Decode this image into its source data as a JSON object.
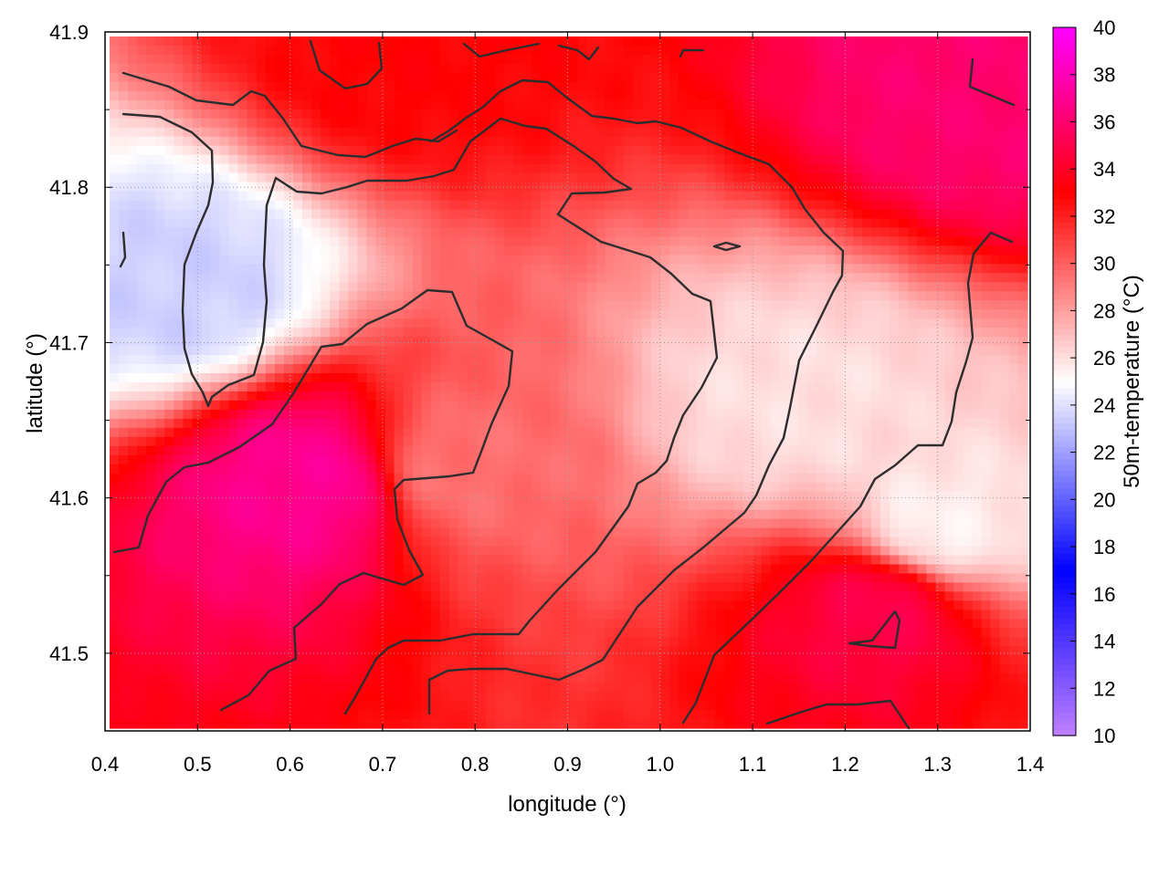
{
  "chart_data": {
    "type": "heatmap",
    "title": "",
    "xlabel": "longitude (°)",
    "ylabel": "latitude (°)",
    "colorbar_label": "50m-temperature (°C)",
    "xlim": [
      0.4,
      1.4
    ],
    "ylim": [
      41.45,
      41.9
    ],
    "x_ticks": [
      "0.4",
      "0.5",
      "0.6",
      "0.7",
      "0.8",
      "0.9",
      "1.0",
      "1.1",
      "1.2",
      "1.3",
      "1.4"
    ],
    "y_ticks": [
      "41.5",
      "41.6",
      "41.7",
      "41.8",
      "41.9"
    ],
    "colorbar_ticks": [
      "10",
      "12",
      "14",
      "16",
      "18",
      "20",
      "22",
      "24",
      "26",
      "28",
      "30",
      "32",
      "34",
      "36",
      "38",
      "40"
    ],
    "colorbar_range": [
      10,
      40
    ],
    "colormap": [
      {
        "v": 10,
        "color": "#c080ff"
      },
      {
        "v": 17,
        "color": "#0000ff"
      },
      {
        "v": 25,
        "color": "#ffffff"
      },
      {
        "v": 33,
        "color": "#ff0000"
      },
      {
        "v": 40,
        "color": "#ff00ff"
      }
    ],
    "grid": true,
    "regions": [
      {
        "desc": "cool pocket west",
        "x": 0.48,
        "y": 41.735,
        "value": 23.5
      },
      {
        "desc": "warm core",
        "x": 0.78,
        "y": 41.62,
        "value": 29.5
      },
      {
        "desc": "warm northeast corner",
        "x": 1.36,
        "y": 41.86,
        "value": 36
      },
      {
        "desc": "warm north ridge",
        "x": 0.72,
        "y": 41.89,
        "value": 33
      },
      {
        "desc": "hot spot",
        "x": 0.625,
        "y": 41.61,
        "value": 37
      },
      {
        "desc": "warm southeast patch",
        "x": 1.24,
        "y": 41.53,
        "value": 35
      },
      {
        "desc": "cooler east",
        "x": 1.15,
        "y": 41.66,
        "value": 26
      },
      {
        "desc": "cooler southeast",
        "x": 1.3,
        "y": 41.58,
        "value": 25.5
      }
    ]
  }
}
